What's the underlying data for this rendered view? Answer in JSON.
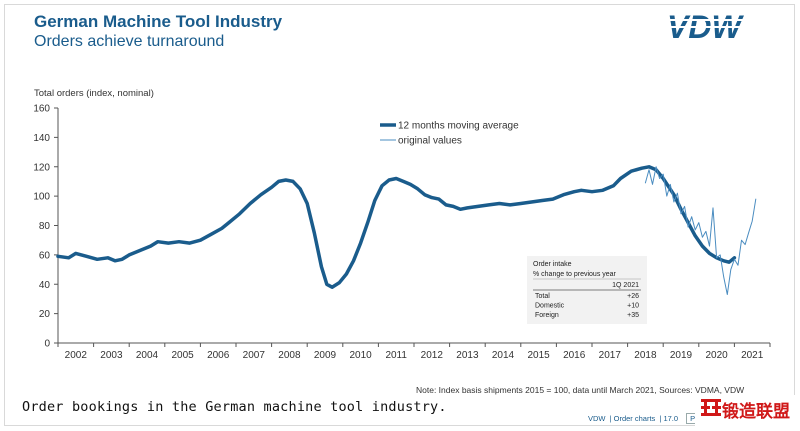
{
  "header": {
    "title": "German Machine Tool Industry",
    "subtitle": "Orders achieve turnaround",
    "logo_text": "VDW"
  },
  "colors": {
    "primary": "#1a5c8c",
    "original_line": "#4a8cc0",
    "table_bg": "#f2f2f2",
    "brand_red": "#d01818"
  },
  "chart_data": {
    "type": "line",
    "ylabel": "Total orders (index, nominal)",
    "ylim": [
      0,
      160
    ],
    "yticks": [
      "0",
      "20",
      "40",
      "60",
      "80",
      "100",
      "120",
      "140",
      "160"
    ],
    "xlim": [
      2001.5,
      2021.5
    ],
    "years": [
      "2002",
      "2003",
      "2004",
      "2005",
      "2006",
      "2007",
      "2008",
      "2009",
      "2010",
      "2011",
      "2012",
      "2013",
      "2014",
      "2015",
      "2016",
      "2017",
      "2018",
      "2019",
      "2020",
      "2021"
    ],
    "grid": false,
    "legend_position": "top-center",
    "series": [
      {
        "name": "12 months moving average",
        "style": "thick",
        "points": [
          [
            2001.5,
            59
          ],
          [
            2001.8,
            58
          ],
          [
            2002.0,
            61
          ],
          [
            2002.3,
            59
          ],
          [
            2002.6,
            57
          ],
          [
            2002.9,
            58
          ],
          [
            2003.1,
            56
          ],
          [
            2003.3,
            57
          ],
          [
            2003.5,
            60
          ],
          [
            2003.8,
            63
          ],
          [
            2004.1,
            66
          ],
          [
            2004.3,
            69
          ],
          [
            2004.6,
            68
          ],
          [
            2004.9,
            69
          ],
          [
            2005.2,
            68
          ],
          [
            2005.5,
            70
          ],
          [
            2005.8,
            74
          ],
          [
            2006.1,
            78
          ],
          [
            2006.3,
            82
          ],
          [
            2006.6,
            88
          ],
          [
            2006.9,
            95
          ],
          [
            2007.2,
            101
          ],
          [
            2007.5,
            106
          ],
          [
            2007.7,
            110
          ],
          [
            2007.9,
            111
          ],
          [
            2008.1,
            110
          ],
          [
            2008.3,
            105
          ],
          [
            2008.5,
            95
          ],
          [
            2008.7,
            75
          ],
          [
            2008.9,
            52
          ],
          [
            2009.05,
            40
          ],
          [
            2009.2,
            38
          ],
          [
            2009.4,
            41
          ],
          [
            2009.6,
            47
          ],
          [
            2009.8,
            56
          ],
          [
            2010.0,
            68
          ],
          [
            2010.2,
            82
          ],
          [
            2010.4,
            97
          ],
          [
            2010.6,
            107
          ],
          [
            2010.8,
            111
          ],
          [
            2011.0,
            112
          ],
          [
            2011.2,
            110
          ],
          [
            2011.4,
            108
          ],
          [
            2011.6,
            105
          ],
          [
            2011.8,
            101
          ],
          [
            2012.0,
            99
          ],
          [
            2012.2,
            98
          ],
          [
            2012.4,
            94
          ],
          [
            2012.6,
            93
          ],
          [
            2012.8,
            91
          ],
          [
            2013.0,
            92
          ],
          [
            2013.3,
            93
          ],
          [
            2013.6,
            94
          ],
          [
            2013.9,
            95
          ],
          [
            2014.2,
            94
          ],
          [
            2014.5,
            95
          ],
          [
            2014.8,
            96
          ],
          [
            2015.1,
            97
          ],
          [
            2015.4,
            98
          ],
          [
            2015.7,
            101
          ],
          [
            2016.0,
            103
          ],
          [
            2016.2,
            104
          ],
          [
            2016.5,
            103
          ],
          [
            2016.8,
            104
          ],
          [
            2017.1,
            107
          ],
          [
            2017.3,
            112
          ],
          [
            2017.6,
            117
          ],
          [
            2017.9,
            119
          ],
          [
            2018.1,
            120
          ],
          [
            2018.3,
            118
          ],
          [
            2018.5,
            112
          ],
          [
            2018.8,
            101
          ],
          [
            2019.0,
            91
          ],
          [
            2019.2,
            82
          ],
          [
            2019.4,
            73
          ],
          [
            2019.6,
            66
          ],
          [
            2019.8,
            61
          ],
          [
            2020.0,
            58
          ],
          [
            2020.2,
            56
          ],
          [
            2020.35,
            55
          ],
          [
            2020.5,
            58
          ]
        ]
      },
      {
        "name": "original values",
        "style": "thin",
        "points": [
          [
            2018.0,
            109
          ],
          [
            2018.1,
            118
          ],
          [
            2018.2,
            108
          ],
          [
            2018.3,
            120
          ],
          [
            2018.4,
            112
          ],
          [
            2018.5,
            115
          ],
          [
            2018.6,
            100
          ],
          [
            2018.7,
            108
          ],
          [
            2018.8,
            96
          ],
          [
            2018.9,
            102
          ],
          [
            2019.0,
            88
          ],
          [
            2019.1,
            93
          ],
          [
            2019.2,
            79
          ],
          [
            2019.3,
            86
          ],
          [
            2019.4,
            77
          ],
          [
            2019.5,
            82
          ],
          [
            2019.6,
            72
          ],
          [
            2019.7,
            76
          ],
          [
            2019.8,
            66
          ],
          [
            2019.9,
            92
          ],
          [
            2020.0,
            58
          ],
          [
            2020.1,
            60
          ],
          [
            2020.2,
            45
          ],
          [
            2020.3,
            33
          ],
          [
            2020.4,
            50
          ],
          [
            2020.5,
            57
          ],
          [
            2020.6,
            53
          ],
          [
            2020.7,
            70
          ],
          [
            2020.8,
            67
          ],
          [
            2020.9,
            75
          ],
          [
            2021.0,
            83
          ],
          [
            2021.1,
            98
          ]
        ]
      }
    ],
    "inset_table": {
      "title": "Order intake",
      "subtitle": "% change to previous year",
      "period": "1Q 2021",
      "rows": [
        {
          "label": "Total",
          "value": "+26"
        },
        {
          "label": "Domestic",
          "value": "+10"
        },
        {
          "label": "Foreign",
          "value": "+35"
        }
      ]
    }
  },
  "note": "Note: Index basis shipments 2015 = 100, data until March 2021, Sources: VDMA, VDW",
  "caption": "Order bookings in the German machine tool industry.",
  "footer": {
    "items": [
      "VDW",
      "Order charts",
      "17.0"
    ],
    "page_label": "Page"
  },
  "watermark": {
    "text": "锻造联盟"
  }
}
